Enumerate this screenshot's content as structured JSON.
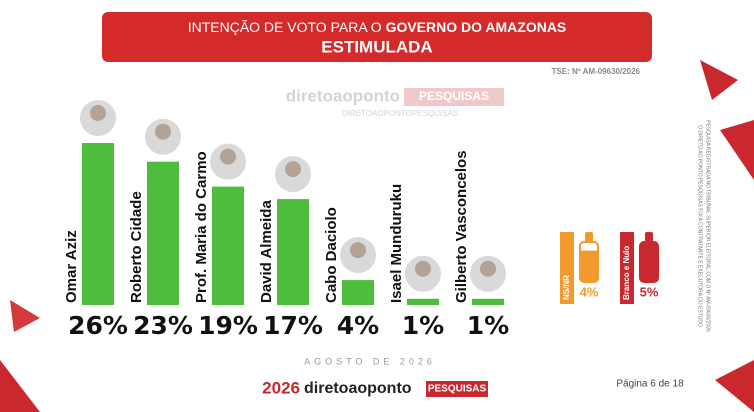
{
  "chart_data": {
    "type": "bar",
    "title": "INTENÇÃO DE VOTO PARA O",
    "title_bold": "GOVERNO DO AMAZONAS",
    "subtitle": "ESTIMULADA",
    "registration": "TSE: Nº AM-09630/2026",
    "categories": [
      "Omar Aziz",
      "Roberto Cidade",
      "Prof. Maria do Carmo",
      "David Almeida",
      "Cabo Daciolo",
      "Isael Munduruku",
      "Gilberto Vasconcelos"
    ],
    "values": [
      26,
      23,
      19,
      17,
      4,
      1,
      1
    ],
    "value_labels": [
      "26%",
      "23%",
      "19%",
      "17%",
      "4%",
      "1%",
      "1%"
    ],
    "color": "#4cbe3c",
    "others": {
      "categories": [
        "NS/NR",
        "Branco e Nulo"
      ],
      "values": [
        4,
        5
      ],
      "value_labels": [
        "4%",
        "5%"
      ],
      "colors": [
        "#f29a2e",
        "#c8282e"
      ]
    }
  },
  "watermark": {
    "brand": "diretoaoponto",
    "tag": "PESQUISAS",
    "url": "DIRETOAOPONTOPESQUISAS"
  },
  "footer": {
    "date": "AGOSTO DE 2026",
    "year": "2026",
    "brand": "diretoaoponto",
    "tag": "PESQUISAS",
    "page": "Página 6 de 18"
  },
  "side_note": [
    "PESQUISA REGISTRADA NO TRIBUNAL SUPERIOR ELEITORAL COM O Nº AM-09630/2026",
    "O DIRETO AO PONTO PESQUISAS FOI A CONTRATANTE E EXECUTORA DO ESTUDO"
  ]
}
